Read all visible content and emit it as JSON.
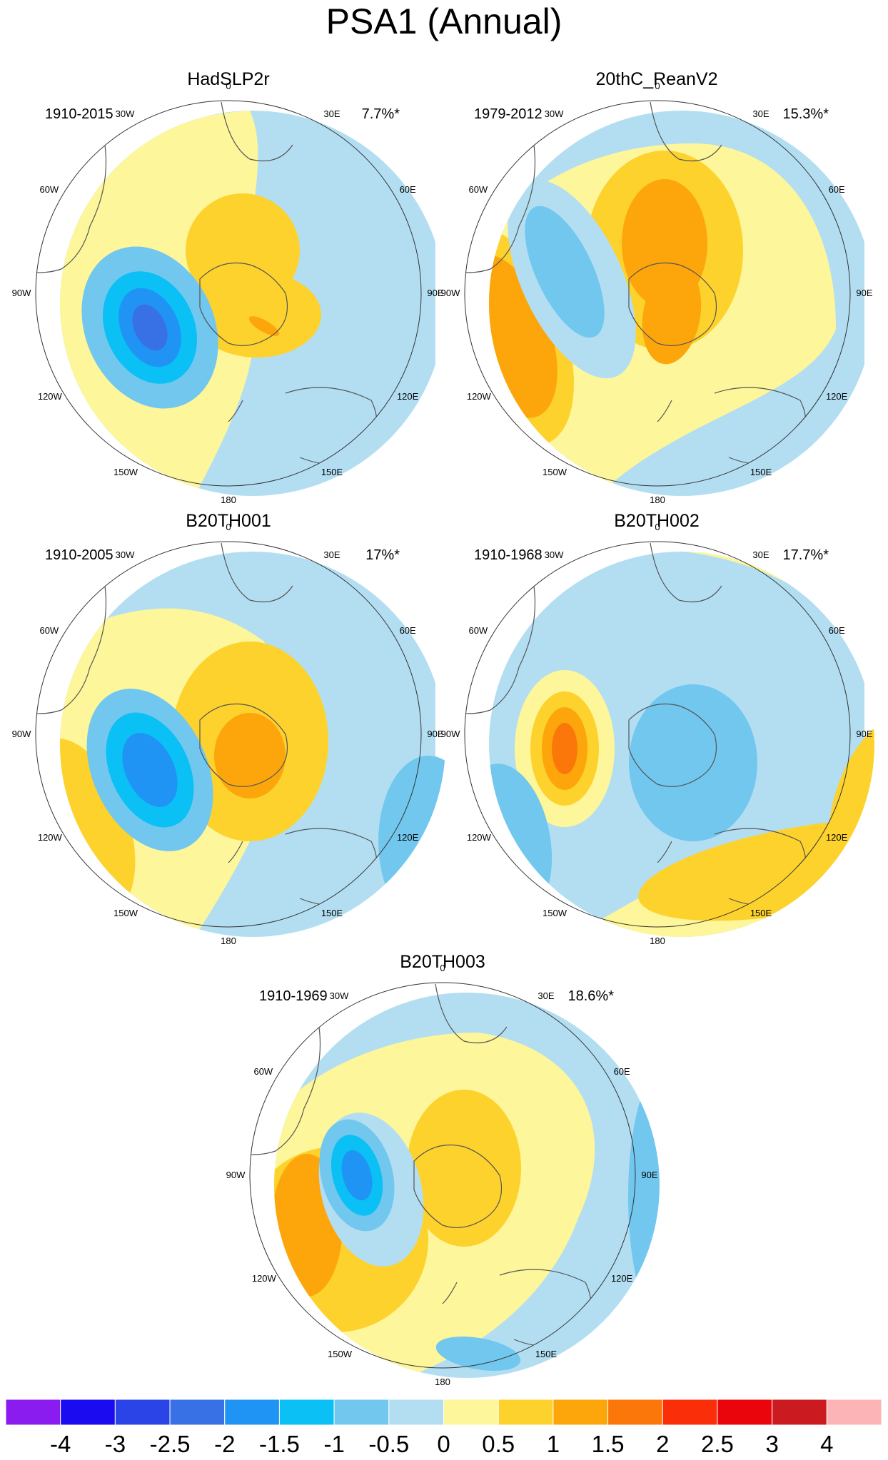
{
  "title": "PSA1 (Annual)",
  "panels": [
    {
      "title": "HadSLP2r",
      "period": "1910-2015",
      "variance": "7.7%*"
    },
    {
      "title": "20thC_ReanV2",
      "period": "1979-2012",
      "variance": "15.3%*"
    },
    {
      "title": "B20TH001",
      "period": "1910-2005",
      "variance": "17%*"
    },
    {
      "title": "B20TH002",
      "period": "1910-1968",
      "variance": "17.7%*"
    },
    {
      "title": "B20TH003",
      "period": "1910-1969",
      "variance": "18.6%*"
    }
  ],
  "longitude_labels": [
    "0",
    "30E",
    "60E",
    "90E",
    "120E",
    "150E",
    "180",
    "150W",
    "120W",
    "90W",
    "60W",
    "30W"
  ],
  "colorbar": {
    "levels": [
      "-4",
      "-3",
      "-2.5",
      "-2",
      "-1.5",
      "-1",
      "-0.5",
      "0",
      "0.5",
      "1",
      "1.5",
      "2",
      "2.5",
      "3",
      "4"
    ],
    "colors": [
      "#8b1cf0",
      "#1a0bf0",
      "#2b44e8",
      "#3870e6",
      "#1f94f5",
      "#0bc0f5",
      "#72c7ef",
      "#b3def2",
      "#fdf69a",
      "#fdd22d",
      "#fca60b",
      "#fb770a",
      "#fb2e0a",
      "#e9050b",
      "#cb1b20",
      "#fcb4b6"
    ]
  }
}
